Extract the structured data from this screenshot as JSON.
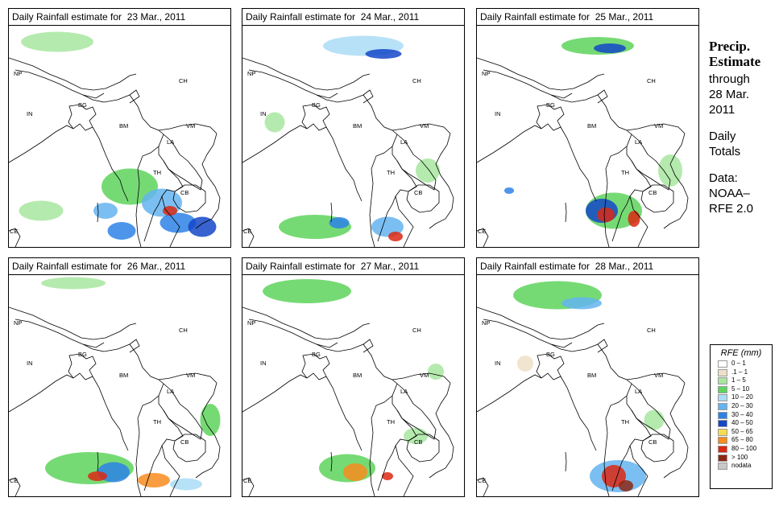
{
  "panels": [
    {
      "title": "Daily Rainfall estimate for  23 Mar., 2011"
    },
    {
      "title": "Daily Rainfall estimate for  24 Mar., 2011"
    },
    {
      "title": "Daily Rainfall estimate for  25 Mar., 2011"
    },
    {
      "title": "Daily Rainfall estimate for  26 Mar., 2011"
    },
    {
      "title": "Daily Rainfall estimate for  27 Mar., 2011"
    },
    {
      "title": "Daily Rainfall estimate for  28 Mar., 2011"
    }
  ],
  "country_labels": {
    "np": "NP",
    "ch": "CH",
    "in": "IN",
    "bg": "BG",
    "bm": "BM",
    "vm": "VM",
    "la": "LA",
    "th": "TH",
    "cb": "CB",
    "ce": "CE"
  },
  "sidebar": {
    "line1": "Precip.",
    "line2": "Estimate",
    "line3": "through",
    "line4": "28 Mar.",
    "line5": "2011",
    "line6": "Daily",
    "line7": "Totals",
    "line8": "Data:",
    "line9": "NOAA–",
    "line10": "RFE 2.0"
  },
  "legend": {
    "title": "RFE (mm)",
    "items": [
      {
        "label": "0 – 1",
        "color": "#ffffff"
      },
      {
        "label": ".1 – 1",
        "color": "#eee0c8"
      },
      {
        "label": "1 – 5",
        "color": "#a8e6a0"
      },
      {
        "label": "5 – 10",
        "color": "#5ed45c"
      },
      {
        "label": "10 – 20",
        "color": "#aadcf4"
      },
      {
        "label": "20 – 30",
        "color": "#64b4f0"
      },
      {
        "label": "30 – 40",
        "color": "#2d82e6"
      },
      {
        "label": "40 – 50",
        "color": "#1446c8"
      },
      {
        "label": "50 – 65",
        "color": "#f8dc50"
      },
      {
        "label": "65 – 80",
        "color": "#f88c1e"
      },
      {
        "label": "80 – 100",
        "color": "#dc2814"
      },
      {
        "label": "> 100",
        "color": "#8c2814"
      },
      {
        "label": "nodata",
        "color": "#c8c8c8"
      }
    ]
  }
}
